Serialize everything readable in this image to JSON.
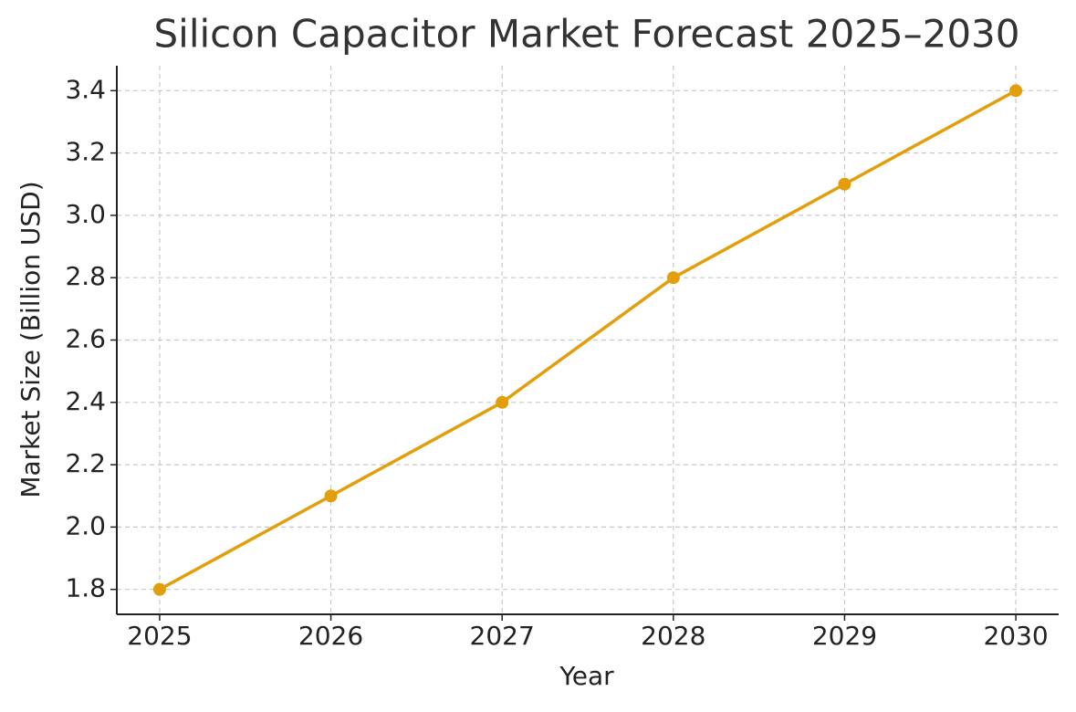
{
  "chart_data": {
    "type": "line",
    "title": "Silicon Capacitor Market Forecast 2025–2030",
    "x_label": "Year",
    "y_label": "Market Size (Billion USD)",
    "x": [
      2025,
      2026,
      2027,
      2028,
      2029,
      2030
    ],
    "values": [
      1.8,
      2.1,
      2.4,
      2.8,
      3.1,
      3.4
    ],
    "color": "#e39e0c",
    "xlim": [
      2024.75,
      2030.25
    ],
    "xticks": [
      2025,
      2026,
      2027,
      2028,
      2029,
      2030
    ],
    "ylim": [
      1.72,
      3.48
    ],
    "yticks": [
      1.8,
      {
        "value": 2,
        "label": "2.0"
      },
      2.2,
      2.4,
      2.6,
      2.8,
      {
        "value": 3,
        "label": "3.0"
      },
      3.2,
      3.4
    ],
    "grid": true
  }
}
